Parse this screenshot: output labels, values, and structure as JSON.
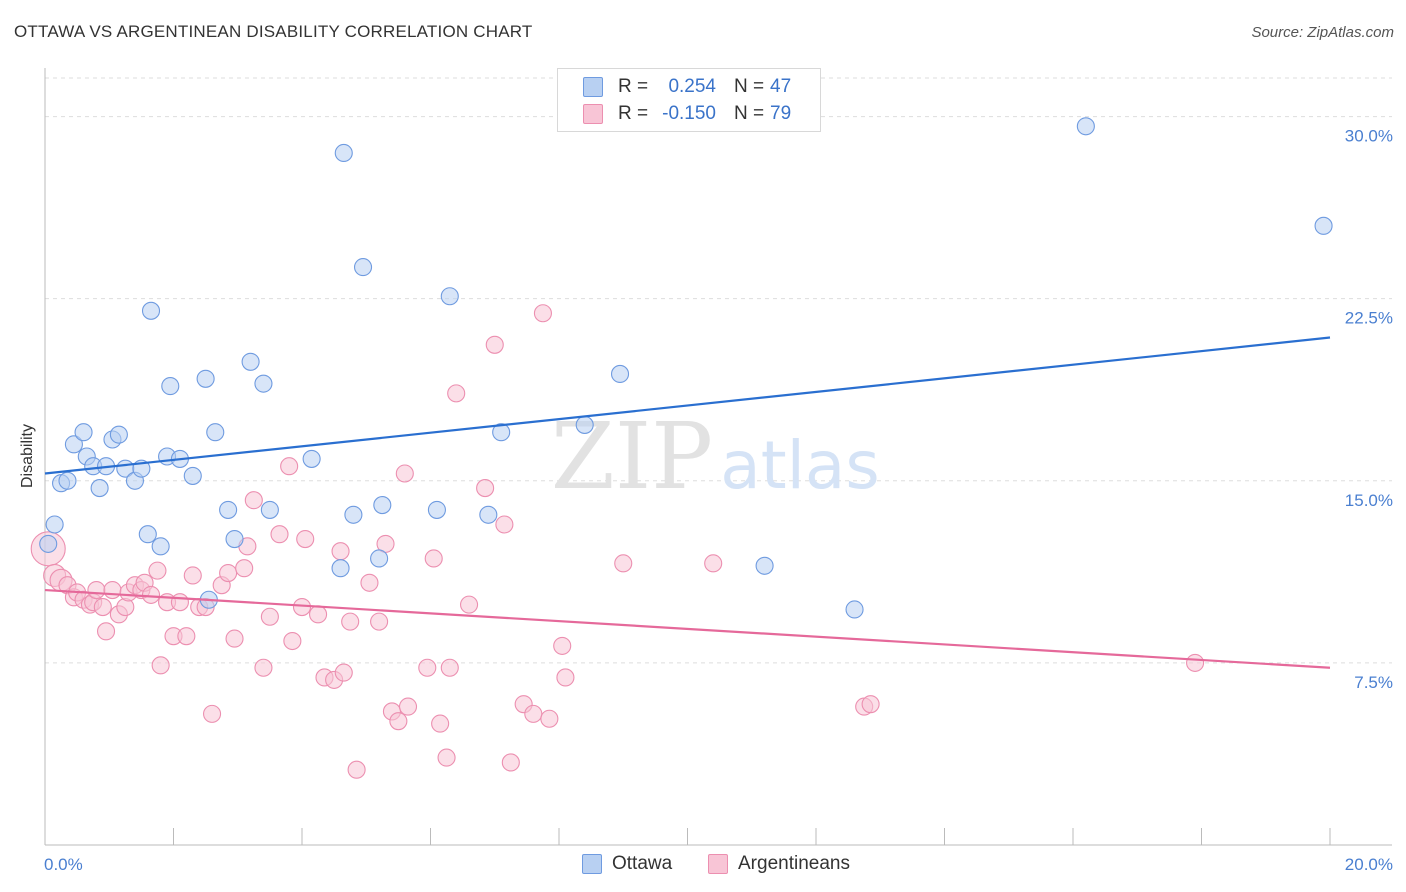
{
  "title": "OTTAWA VS ARGENTINEAN DISABILITY CORRELATION CHART",
  "source": "Source: ZipAtlas.com",
  "watermark": {
    "zip": "ZIP",
    "atlas": "atlas"
  },
  "legend": {
    "rows": [
      {
        "r_label": "R =",
        "r_value": "0.254",
        "n_label": "N =",
        "n_value": "47"
      },
      {
        "r_label": "R =",
        "r_value": "-0.150",
        "n_label": "N =",
        "n_value": "79"
      }
    ]
  },
  "bottom_legend": [
    "Ottawa",
    "Argentineans"
  ],
  "colors": {
    "ottawa_fill": "#b8d0f2",
    "ottawa_stroke": "#6f9be0",
    "ottawa_line": "#2a6fd0",
    "arg_fill": "#f8c5d6",
    "arg_stroke": "#ec8fb0",
    "arg_line": "#e5699a",
    "tick_label": "#4a7fd0",
    "grid": "#dddddd"
  },
  "chart_data": {
    "type": "scatter",
    "title": "OTTAWA VS ARGENTINEAN DISABILITY CORRELATION CHART",
    "xlabel": "",
    "ylabel": "Disability",
    "xlim": [
      0,
      20
    ],
    "ylim": [
      0,
      32
    ],
    "x_tick_labels": [
      "0.0%",
      "20.0%"
    ],
    "y_ticks": [
      7.5,
      15.0,
      22.5,
      30.0
    ],
    "y_tick_labels": [
      "7.5%",
      "15.0%",
      "22.5%",
      "30.0%"
    ],
    "grid": "horizontal dashed",
    "legend_position": "top-center",
    "series": [
      {
        "name": "Ottawa",
        "r": 0.254,
        "n": 47,
        "trend": {
          "x": [
            0,
            20
          ],
          "y": [
            15.3,
            20.9
          ]
        },
        "points": [
          [
            0.05,
            12.4
          ],
          [
            0.15,
            13.2
          ],
          [
            0.25,
            14.9
          ],
          [
            0.35,
            15.0
          ],
          [
            0.45,
            16.5
          ],
          [
            0.6,
            17.0
          ],
          [
            0.65,
            16.0
          ],
          [
            0.75,
            15.6
          ],
          [
            0.85,
            14.7
          ],
          [
            0.95,
            15.6
          ],
          [
            1.05,
            16.7
          ],
          [
            1.15,
            16.9
          ],
          [
            1.25,
            15.5
          ],
          [
            1.4,
            15.0
          ],
          [
            1.5,
            15.5
          ],
          [
            1.6,
            12.8
          ],
          [
            1.8,
            12.3
          ],
          [
            1.65,
            22.0
          ],
          [
            1.9,
            16.0
          ],
          [
            1.95,
            18.9
          ],
          [
            2.1,
            15.9
          ],
          [
            2.3,
            15.2
          ],
          [
            2.5,
            19.2
          ],
          [
            2.65,
            17.0
          ],
          [
            2.85,
            13.8
          ],
          [
            2.95,
            12.6
          ],
          [
            2.55,
            10.1
          ],
          [
            3.2,
            19.9
          ],
          [
            3.4,
            19.0
          ],
          [
            3.5,
            13.8
          ],
          [
            4.15,
            15.9
          ],
          [
            4.6,
            11.4
          ],
          [
            4.65,
            28.5
          ],
          [
            4.8,
            13.6
          ],
          [
            4.95,
            23.8
          ],
          [
            5.2,
            11.8
          ],
          [
            5.25,
            14.0
          ],
          [
            6.1,
            13.8
          ],
          [
            6.3,
            22.6
          ],
          [
            6.9,
            13.6
          ],
          [
            7.1,
            17.0
          ],
          [
            8.4,
            17.3
          ],
          [
            8.95,
            19.4
          ],
          [
            11.2,
            11.5
          ],
          [
            12.6,
            9.7
          ],
          [
            19.9,
            25.5
          ],
          [
            16.2,
            29.6
          ]
        ]
      },
      {
        "name": "Argentineans",
        "r": -0.15,
        "n": 79,
        "trend": {
          "x": [
            0,
            20
          ],
          "y": [
            10.5,
            7.3
          ]
        },
        "points": [
          [
            0.05,
            12.2
          ],
          [
            0.15,
            11.1
          ],
          [
            0.25,
            10.9
          ],
          [
            0.35,
            10.7
          ],
          [
            0.45,
            10.2
          ],
          [
            0.5,
            10.4
          ],
          [
            0.6,
            10.1
          ],
          [
            0.7,
            9.9
          ],
          [
            0.75,
            10.0
          ],
          [
            0.8,
            10.5
          ],
          [
            0.9,
            9.8
          ],
          [
            0.95,
            8.8
          ],
          [
            1.05,
            10.5
          ],
          [
            1.15,
            9.5
          ],
          [
            1.25,
            9.8
          ],
          [
            1.3,
            10.4
          ],
          [
            1.4,
            10.7
          ],
          [
            1.5,
            10.5
          ],
          [
            1.55,
            10.8
          ],
          [
            1.65,
            10.3
          ],
          [
            1.75,
            11.3
          ],
          [
            1.8,
            7.4
          ],
          [
            1.9,
            10.0
          ],
          [
            2.0,
            8.6
          ],
          [
            2.1,
            10.0
          ],
          [
            2.2,
            8.6
          ],
          [
            2.3,
            11.1
          ],
          [
            2.4,
            9.8
          ],
          [
            2.5,
            9.8
          ],
          [
            2.6,
            5.4
          ],
          [
            2.75,
            10.7
          ],
          [
            2.85,
            11.2
          ],
          [
            2.95,
            8.5
          ],
          [
            3.1,
            11.4
          ],
          [
            3.15,
            12.3
          ],
          [
            3.25,
            14.2
          ],
          [
            3.4,
            7.3
          ],
          [
            3.5,
            9.4
          ],
          [
            3.65,
            12.8
          ],
          [
            3.8,
            15.6
          ],
          [
            3.85,
            8.4
          ],
          [
            4.0,
            9.8
          ],
          [
            4.05,
            12.6
          ],
          [
            4.25,
            9.5
          ],
          [
            4.35,
            6.9
          ],
          [
            4.5,
            6.8
          ],
          [
            4.6,
            12.1
          ],
          [
            4.65,
            7.1
          ],
          [
            4.75,
            9.2
          ],
          [
            4.85,
            3.1
          ],
          [
            5.05,
            10.8
          ],
          [
            5.2,
            9.2
          ],
          [
            5.3,
            12.4
          ],
          [
            5.4,
            5.5
          ],
          [
            5.5,
            5.1
          ],
          [
            5.6,
            15.3
          ],
          [
            5.65,
            5.7
          ],
          [
            5.95,
            7.3
          ],
          [
            6.05,
            11.8
          ],
          [
            6.15,
            5.0
          ],
          [
            6.25,
            3.6
          ],
          [
            6.3,
            7.3
          ],
          [
            6.6,
            9.9
          ],
          [
            6.85,
            14.7
          ],
          [
            7.0,
            20.6
          ],
          [
            7.15,
            13.2
          ],
          [
            6.4,
            18.6
          ],
          [
            7.25,
            3.4
          ],
          [
            7.45,
            5.8
          ],
          [
            7.6,
            5.4
          ],
          [
            7.75,
            21.9
          ],
          [
            7.85,
            5.2
          ],
          [
            8.05,
            8.2
          ],
          [
            8.1,
            6.9
          ],
          [
            9.0,
            11.6
          ],
          [
            10.4,
            11.6
          ],
          [
            12.75,
            5.7
          ],
          [
            12.85,
            5.8
          ],
          [
            17.9,
            7.5
          ]
        ]
      }
    ]
  }
}
